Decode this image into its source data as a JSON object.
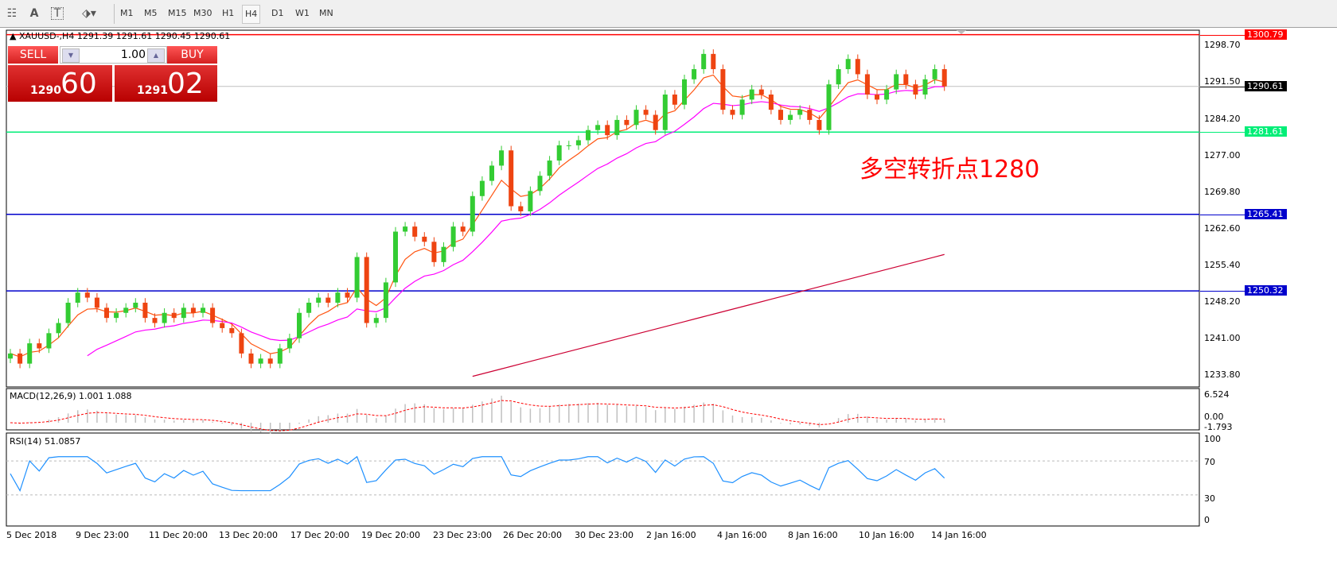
{
  "toolbar": {
    "icons": [
      "fibonacci-fan-icon",
      "text-icon",
      "text-label-icon",
      "arrows-icon"
    ],
    "text_icon": "A",
    "label_icon": "T",
    "timeframes": [
      "M1",
      "M5",
      "M15",
      "M30",
      "H1",
      "H4",
      "D1",
      "W1",
      "MN"
    ],
    "active_timeframe": "H4"
  },
  "chart": {
    "header": "XAUUSD-,H4  1291.39 1291.61 1290.45 1290.61",
    "annotation": "多空转折点1280",
    "annotation_color": "#ff0000",
    "price_axis": [
      "1298.70",
      "1291.50",
      "1284.20",
      "1277.00",
      "1269.80",
      "1262.60",
      "1255.40",
      "1248.20",
      "1241.00",
      "1233.80"
    ],
    "levels": [
      {
        "price": 1300.79,
        "label": "1300.79",
        "color": "#ff0000"
      },
      {
        "price": 1290.61,
        "label": "1290.61",
        "color": "#c0c0c0",
        "tag_color": "#000000"
      },
      {
        "price": 1281.61,
        "label": "1281.61",
        "color": "#00ee77"
      },
      {
        "price": 1265.41,
        "label": "1265.41",
        "color": "#0000cc"
      },
      {
        "price": 1250.32,
        "label": "1250.32",
        "color": "#0000cc"
      }
    ],
    "time_axis": [
      "5 Dec 2018",
      "9 Dec 23:00",
      "11 Dec 20:00",
      "13 Dec 20:00",
      "17 Dec 20:00",
      "19 Dec 20:00",
      "23 Dec 23:00",
      "26 Dec 20:00",
      "30 Dec 23:00",
      "2 Jan 16:00",
      "4 Jan 16:00",
      "8 Jan 16:00",
      "10 Jan 16:00",
      "14 Jan 16:00"
    ],
    "colors": {
      "bull": "#33cc33",
      "bear": "#ee4411",
      "ma_fast": "#ff5511",
      "ma_mid": "#ff00ff",
      "ma_slow": "#cc0033",
      "rsi": "#1e90ff",
      "macd_hist": "#c0c0c0",
      "macd_signal": "#ff0000"
    }
  },
  "chart_data": {
    "type": "candlestick",
    "symbol": "XAUUSD-",
    "timeframe": "H4",
    "ylim": [
      1232,
      1302
    ],
    "closes": [
      1238,
      1236,
      1240,
      1239,
      1242,
      1244,
      1248,
      1250,
      1249,
      1247,
      1245,
      1246,
      1247,
      1248,
      1245,
      1244,
      1246,
      1245,
      1247,
      1246,
      1247,
      1244,
      1243,
      1242,
      1238,
      1236,
      1237,
      1236,
      1239,
      1241,
      1246,
      1248,
      1249,
      1248,
      1250,
      1249,
      1257,
      1244,
      1245,
      1252,
      1262,
      1263,
      1261,
      1260,
      1256,
      1259,
      1263,
      1262,
      1269,
      1272,
      1275,
      1278,
      1267,
      1266,
      1270,
      1273,
      1276,
      1279,
      1279,
      1280,
      1282,
      1283,
      1281,
      1284,
      1283,
      1286,
      1285,
      1282,
      1289,
      1287,
      1292,
      1294,
      1297,
      1294,
      1286,
      1285,
      1288,
      1290,
      1289,
      1286,
      1284,
      1285,
      1286,
      1284,
      1282,
      1291,
      1294,
      1296,
      1293,
      1289,
      1288,
      1290,
      1293,
      1291,
      1289,
      1292,
      1294,
      1290.61
    ],
    "first_open": 1237,
    "slow_ma": {
      "start_value": 1233.5,
      "end_value": 1257.5,
      "start_candle": 48
    },
    "macd": {
      "label": "MACD(12,26,9) 1.001 1.088",
      "axis": [
        "6.524",
        "0.00",
        "-1.793"
      ]
    },
    "rsi": {
      "label": "RSI(14) 51.0857",
      "axis": [
        "100",
        "70",
        "30",
        "0"
      ],
      "levels": [
        70,
        30
      ]
    }
  },
  "trade": {
    "sell_label": "SELL",
    "buy_label": "BUY",
    "lot": "1.00",
    "bid_small": "1290",
    "bid_big": "60",
    "ask_small": "1291",
    "ask_big": "02"
  }
}
